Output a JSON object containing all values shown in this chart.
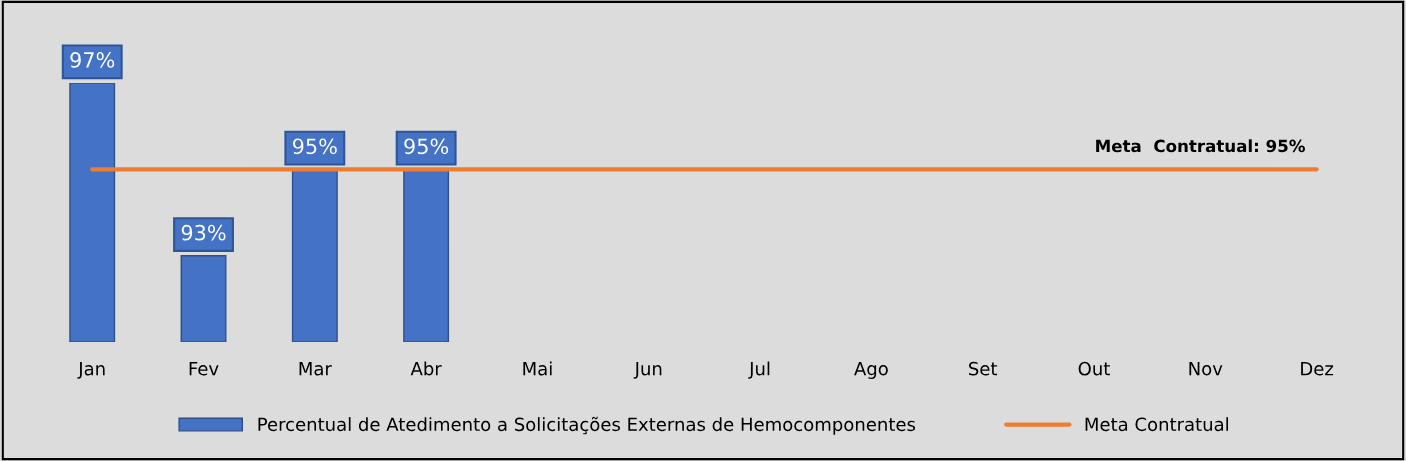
{
  "chart_data": {
    "type": "bar",
    "categories": [
      "Jan",
      "Fev",
      "Mar",
      "Abr",
      "Mai",
      "Jun",
      "Jul",
      "Ago",
      "Set",
      "Out",
      "Nov",
      "Dez"
    ],
    "series": [
      {
        "name": "Percentual de Atedimento a Solicitações Externas de Hemocomponentes",
        "color": "#4472c4",
        "values": [
          97,
          93,
          95,
          95,
          null,
          null,
          null,
          null,
          null,
          null,
          null,
          null
        ],
        "value_labels": [
          "97%",
          "93%",
          "95%",
          "95%",
          null,
          null,
          null,
          null,
          null,
          null,
          null,
          null
        ]
      },
      {
        "name": "Meta Contratual",
        "type": "line",
        "color": "#ed7d31",
        "values": [
          95,
          95,
          95,
          95,
          95,
          95,
          95,
          95,
          95,
          95,
          95,
          95
        ]
      }
    ],
    "ylim": [
      91,
      97
    ],
    "tick_labels": "x",
    "annotations": [
      {
        "text": "Meta  Contratual: 95%",
        "x": "Dez",
        "y": 95
      }
    ],
    "legend": "bottom",
    "grid": false
  }
}
